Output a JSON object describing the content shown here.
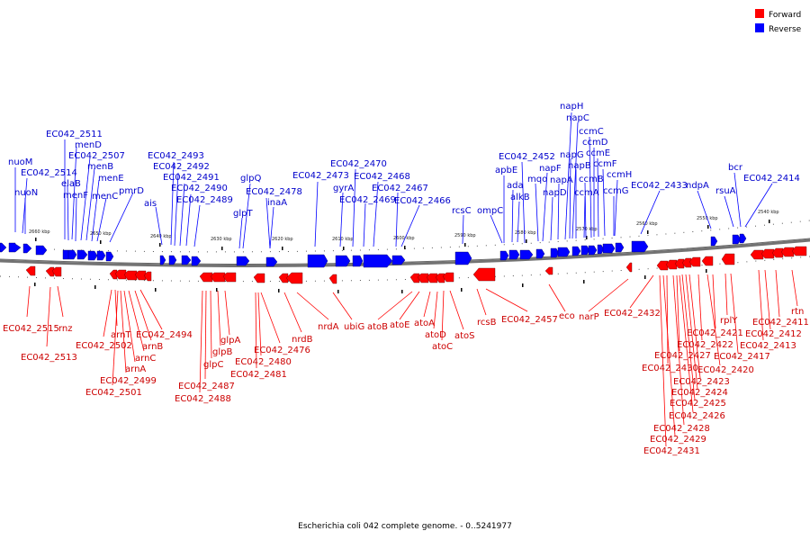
{
  "caption": "Escherichia coli 042 complete genome. - 0..5241977",
  "legend": {
    "forward_label": "Forward",
    "reverse_label": "Reverse",
    "forward_color": "#ff0000",
    "reverse_color": "#0000ff"
  },
  "ticks": [
    "2660 kbp",
    "2650 kbp",
    "2640 kbp",
    "2630 kbp",
    "2620 kbp",
    "2610 kbp",
    "2600 kbp",
    "2590 kbp",
    "2580 kbp",
    "2570 kbp",
    "2560 kbp",
    "2550 kbp",
    "2540 kbp"
  ],
  "reverse_genes": [
    "nuoM",
    "EC042_2514",
    "nuoN",
    "EC042_2511",
    "menD",
    "EC042_2507",
    "menB",
    "elaB",
    "menE",
    "menF",
    "menC",
    "pmrD",
    "ais",
    "EC042_2493",
    "EC042_2492",
    "EC042_2491",
    "EC042_2490",
    "EC042_2489",
    "glpQ",
    "EC042_2478",
    "glpT",
    "inaA",
    "EC042_2473",
    "EC042_2470",
    "gyrA",
    "EC042_2468",
    "EC042_2469",
    "EC042_2467",
    "EC042_2466",
    "rcsC",
    "ompC",
    "EC042_2452",
    "apbE",
    "ada",
    "alkB",
    "mqo",
    "napF",
    "napD",
    "napA",
    "napH",
    "napC",
    "napG",
    "napB",
    "ccmA",
    "ccmB",
    "ccmC",
    "ccmD",
    "ccmE",
    "ccmF",
    "ccmH",
    "ccmG",
    "EC042_2433",
    "ndpA",
    "bcr",
    "rsuA",
    "EC042_2414"
  ],
  "forward_genes": [
    "EC042_2515",
    "rnz",
    "EC042_2513",
    "arnT",
    "EC042_2502",
    "EC042_2494",
    "arnB",
    "arnC",
    "arnA",
    "EC042_2499",
    "EC042_2501",
    "glpA",
    "glpB",
    "glpC",
    "EC042_2487",
    "EC042_2488",
    "EC042_2476",
    "EC042_2480",
    "EC042_2481",
    "nrdB",
    "nrdA",
    "ubiG",
    "atoB",
    "atoE",
    "atoA",
    "atoD",
    "atoC",
    "atoS",
    "rcsB",
    "EC042_2457",
    "eco",
    "narP",
    "EC042_2432",
    "rplY",
    "EC042_2421",
    "EC042_2422",
    "EC042_2427",
    "EC042_2417",
    "EC042_2430",
    "EC042_2420",
    "EC042_2423",
    "EC042_2424",
    "EC042_2425",
    "EC042_2426",
    "EC042_2428",
    "EC042_2429",
    "EC042_2431",
    "rtn",
    "EC042_2411",
    "EC042_2412",
    "EC042_2413"
  ]
}
